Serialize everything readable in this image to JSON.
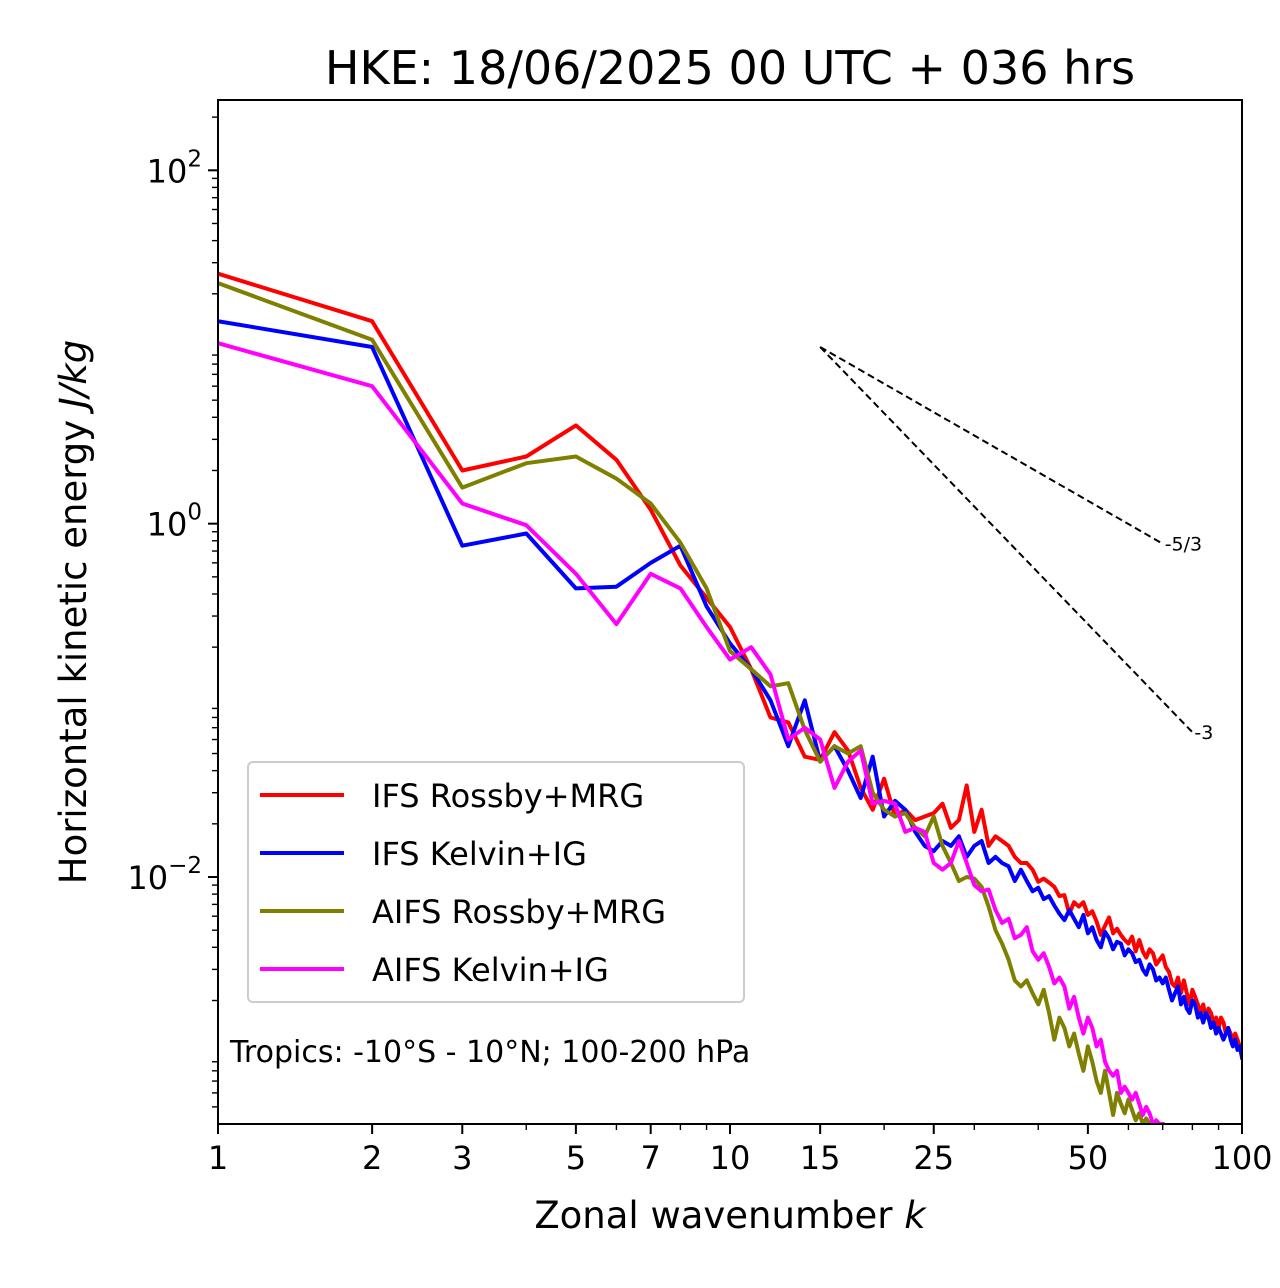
{
  "chart_data": {
    "type": "line",
    "title": "HKE: 18/06/2025 00 UTC + 036 hrs",
    "xlabel_main": "Zonal wavenumber ",
    "xlabel_italic": "k",
    "ylabel_main": "Horizontal kinetic energy ",
    "ylabel_italic": "J/kg",
    "xscale": "log",
    "yscale": "log",
    "xlim": [
      1,
      100
    ],
    "ylim": [
      0.0004,
      250
    ],
    "grid": false,
    "legend_position": "lower-left",
    "x_ticks": [
      {
        "v": 1,
        "label": "1"
      },
      {
        "v": 2,
        "label": "2"
      },
      {
        "v": 3,
        "label": "3"
      },
      {
        "v": 5,
        "label": "5"
      },
      {
        "v": 7,
        "label": "7"
      },
      {
        "v": 10,
        "label": "10"
      },
      {
        "v": 15,
        "label": "15"
      },
      {
        "v": 25,
        "label": "25"
      },
      {
        "v": 50,
        "label": "50"
      },
      {
        "v": 100,
        "label": "100"
      }
    ],
    "y_ticks": [
      {
        "v": 100,
        "base": "10",
        "exp": "2"
      },
      {
        "v": 1,
        "base": "10",
        "exp": "0"
      },
      {
        "v": 0.01,
        "base": "10",
        "exp": "−2"
      }
    ],
    "annotation": "Tropics: -10°S - 10°N; 100-200 hPa",
    "reference_slopes": [
      {
        "label": "-5/3",
        "x0": 15,
        "y0": 10.0,
        "x1": 70,
        "y1": 0.77
      },
      {
        "label": "-3",
        "x0": 15,
        "y0": 10.0,
        "x1": 80,
        "y1": 0.066
      }
    ],
    "series": [
      {
        "name": "IFS Rossby+MRG",
        "color": "#ff0000",
        "x": [
          1,
          2,
          3,
          4,
          5,
          6,
          7,
          8,
          9,
          10,
          11,
          12,
          13,
          14,
          15,
          16,
          17,
          18,
          19,
          20,
          21,
          22,
          23,
          24,
          25,
          26,
          27,
          28,
          29,
          30,
          31,
          32,
          33,
          34,
          35,
          36,
          37,
          38,
          39,
          40,
          41,
          42,
          43,
          44,
          45,
          46,
          47,
          48,
          49,
          50,
          51,
          52,
          53,
          54,
          55,
          56,
          57,
          58,
          59,
          60,
          61,
          62,
          63,
          64,
          65,
          66,
          67,
          68,
          69,
          70,
          71,
          72,
          73,
          74,
          75,
          76,
          77,
          78,
          79,
          80,
          81,
          82,
          83,
          84,
          85,
          86,
          87,
          88,
          89,
          90,
          91,
          92,
          93,
          94,
          95,
          96,
          97,
          98,
          99,
          100
        ],
        "y": [
          26,
          14,
          2.0,
          2.4,
          3.6,
          2.3,
          1.2,
          0.58,
          0.38,
          0.26,
          0.15,
          0.08,
          0.075,
          0.048,
          0.046,
          0.066,
          0.052,
          0.032,
          0.024,
          0.036,
          0.022,
          0.024,
          0.021,
          0.022,
          0.023,
          0.026,
          0.019,
          0.021,
          0.033,
          0.018,
          0.024,
          0.015,
          0.017,
          0.016,
          0.015,
          0.013,
          0.012,
          0.012,
          0.011,
          0.0094,
          0.0098,
          0.0093,
          0.0088,
          0.0078,
          0.0079,
          0.0062,
          0.0072,
          0.0068,
          0.0072,
          0.0061,
          0.0064,
          0.0056,
          0.0047,
          0.0053,
          0.0059,
          0.0048,
          0.0051,
          0.0047,
          0.0044,
          0.0042,
          0.0046,
          0.0038,
          0.0044,
          0.0038,
          0.0035,
          0.0039,
          0.0037,
          0.0032,
          0.0034,
          0.0036,
          0.0031,
          0.0029,
          0.0025,
          0.0024,
          0.0027,
          0.0022,
          0.0026,
          0.0022,
          0.0019,
          0.0023,
          0.0021,
          0.0019,
          0.0017,
          0.0019,
          0.0016,
          0.0018,
          0.0017,
          0.0015,
          0.0016,
          0.0014,
          0.0016,
          0.0015,
          0.0013,
          0.0014,
          0.0013,
          0.0012,
          0.0013,
          0.0012,
          0.0011,
          0.00105
        ]
      },
      {
        "name": "IFS Kelvin+IG",
        "color": "#0000ff",
        "x": [
          1,
          2,
          3,
          4,
          5,
          6,
          7,
          8,
          9,
          10,
          11,
          12,
          13,
          14,
          15,
          16,
          17,
          18,
          19,
          20,
          21,
          22,
          23,
          24,
          25,
          26,
          27,
          28,
          29,
          30,
          31,
          32,
          33,
          34,
          35,
          36,
          37,
          38,
          39,
          40,
          41,
          42,
          43,
          44,
          45,
          46,
          47,
          48,
          49,
          50,
          51,
          52,
          53,
          54,
          55,
          56,
          57,
          58,
          59,
          60,
          61,
          62,
          63,
          64,
          65,
          66,
          67,
          68,
          69,
          70,
          71,
          72,
          73,
          74,
          75,
          76,
          77,
          78,
          79,
          80,
          81,
          82,
          83,
          84,
          85,
          86,
          87,
          88,
          89,
          90,
          91,
          92,
          93,
          94,
          95,
          96,
          97,
          98,
          99,
          100
        ],
        "y": [
          14,
          10,
          0.75,
          0.88,
          0.43,
          0.44,
          0.6,
          0.75,
          0.34,
          0.21,
          0.15,
          0.1,
          0.055,
          0.1,
          0.045,
          0.055,
          0.04,
          0.028,
          0.048,
          0.022,
          0.027,
          0.024,
          0.018,
          0.015,
          0.014,
          0.016,
          0.015,
          0.017,
          0.013,
          0.015,
          0.016,
          0.012,
          0.013,
          0.012,
          0.0115,
          0.0095,
          0.011,
          0.0095,
          0.0083,
          0.0087,
          0.0075,
          0.0078,
          0.0069,
          0.0062,
          0.0057,
          0.0065,
          0.0058,
          0.0052,
          0.0061,
          0.0048,
          0.0052,
          0.0044,
          0.004,
          0.0049,
          0.0045,
          0.0039,
          0.0043,
          0.0042,
          0.0036,
          0.0039,
          0.0037,
          0.0033,
          0.0034,
          0.003,
          0.0028,
          0.0032,
          0.003,
          0.0026,
          0.0027,
          0.0025,
          0.0027,
          0.0023,
          0.002,
          0.0022,
          0.0024,
          0.0019,
          0.0021,
          0.0018,
          0.0017,
          0.002,
          0.0019,
          0.0016,
          0.0017,
          0.0015,
          0.0017,
          0.0016,
          0.0014,
          0.0015,
          0.0013,
          0.0014,
          0.0013,
          0.0012,
          0.0013,
          0.0014,
          0.0012,
          0.0011,
          0.0012,
          0.00105,
          0.0011,
          0.00095
        ]
      },
      {
        "name": "AIFS Rossby+MRG",
        "color": "#808000",
        "x": [
          1,
          2,
          3,
          4,
          5,
          6,
          7,
          8,
          9,
          10,
          11,
          12,
          13,
          14,
          15,
          16,
          17,
          18,
          19,
          20,
          21,
          22,
          23,
          24,
          25,
          26,
          27,
          28,
          29,
          30,
          31,
          32,
          33,
          34,
          35,
          36,
          37,
          38,
          39,
          40,
          41,
          42,
          43,
          44,
          45,
          46,
          47,
          48,
          49,
          50,
          51,
          52,
          53,
          54,
          55,
          56,
          57,
          58,
          59,
          60,
          61,
          62,
          63,
          64,
          65,
          66
        ],
        "y": [
          23,
          11,
          1.6,
          2.2,
          2.4,
          1.8,
          1.3,
          0.78,
          0.43,
          0.19,
          0.15,
          0.12,
          0.125,
          0.068,
          0.045,
          0.055,
          0.05,
          0.055,
          0.03,
          0.024,
          0.022,
          0.023,
          0.019,
          0.017,
          0.022,
          0.015,
          0.012,
          0.0095,
          0.01,
          0.0098,
          0.0088,
          0.0068,
          0.005,
          0.0042,
          0.0034,
          0.0026,
          0.0024,
          0.0026,
          0.0022,
          0.0019,
          0.0023,
          0.0017,
          0.0012,
          0.0016,
          0.0014,
          0.0011,
          0.0013,
          0.001,
          0.0008,
          0.0011,
          0.0009,
          0.0007,
          0.0006,
          0.0008,
          0.0006,
          0.00045,
          0.0006,
          0.00052,
          0.00046,
          0.00055,
          0.00048,
          0.00042,
          0.00046,
          0.0004,
          0.00043,
          0.0004
        ]
      },
      {
        "name": "AIFS Kelvin+IG",
        "color": "#ff00ff",
        "x": [
          1,
          2,
          3,
          4,
          5,
          6,
          7,
          8,
          9,
          10,
          11,
          12,
          13,
          14,
          15,
          16,
          17,
          18,
          19,
          20,
          21,
          22,
          23,
          24,
          25,
          26,
          27,
          28,
          29,
          30,
          31,
          32,
          33,
          34,
          35,
          36,
          37,
          38,
          39,
          40,
          41,
          42,
          43,
          44,
          45,
          46,
          47,
          48,
          49,
          50,
          51,
          52,
          53,
          54,
          55,
          56,
          57,
          58,
          59,
          60,
          61,
          62,
          63,
          64,
          65,
          66,
          67,
          68,
          69,
          70
        ],
        "y": [
          10.5,
          6,
          1.3,
          0.98,
          0.52,
          0.27,
          0.52,
          0.43,
          0.26,
          0.17,
          0.2,
          0.14,
          0.06,
          0.07,
          0.06,
          0.032,
          0.045,
          0.052,
          0.026,
          0.027,
          0.026,
          0.018,
          0.019,
          0.018,
          0.012,
          0.011,
          0.012,
          0.016,
          0.012,
          0.009,
          0.0083,
          0.0085,
          0.0065,
          0.0055,
          0.0058,
          0.0045,
          0.0047,
          0.0052,
          0.0038,
          0.0034,
          0.0037,
          0.0031,
          0.0025,
          0.0027,
          0.0024,
          0.0018,
          0.0021,
          0.0016,
          0.0013,
          0.0016,
          0.0014,
          0.0011,
          0.0012,
          0.0009,
          0.0008,
          0.00075,
          0.0008,
          0.0006,
          0.00065,
          0.0006,
          0.00055,
          0.0006,
          0.00052,
          0.00045,
          0.0005,
          0.00046,
          0.0004,
          0.00042,
          0.0004,
          0.0004
        ]
      }
    ]
  }
}
